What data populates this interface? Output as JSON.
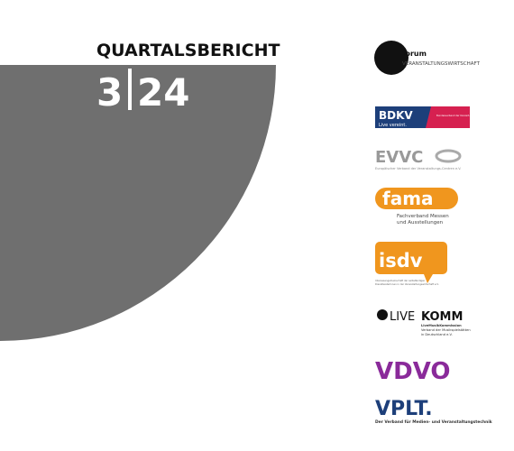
{
  "cover": {
    "title": "QUARTALSBERICHT",
    "quarter": "3",
    "year": "24"
  },
  "logos": {
    "forum": {
      "name": "forum",
      "subtitle": "VERANSTALTUNGSWIRTSCHAFT"
    },
    "bdkv": {
      "name": "BDKV",
      "tagline": "Live vereint.",
      "full": "Bundesverband der Konzert- und Veranstaltungswirtschaft e.V."
    },
    "evvc": {
      "name": "EVVC",
      "full": "Europäischer Verband der Veranstaltungs-Centren e.V."
    },
    "fama": {
      "name": "fama",
      "line1": "Fachverband Messen",
      "line2": "und Ausstellungen"
    },
    "isdv": {
      "name": "isdv",
      "line1": "Interessengemeinschaft der selbständigen",
      "line2": "DienstleisterInnen in der Veranstaltungswirtschaft e.V."
    },
    "livekomm": {
      "name1": "LIVE",
      "name2": "KOMM",
      "line1": "LiveMusikKommission",
      "line2": "Verband der Musikspielstätten",
      "line3": "in Deutschland e.V."
    },
    "vdvo": {
      "name": "VDVO"
    },
    "vplt": {
      "name": "VPLT.",
      "full": "Der Verband für Medien- und Veranstaltungstechnik"
    }
  }
}
